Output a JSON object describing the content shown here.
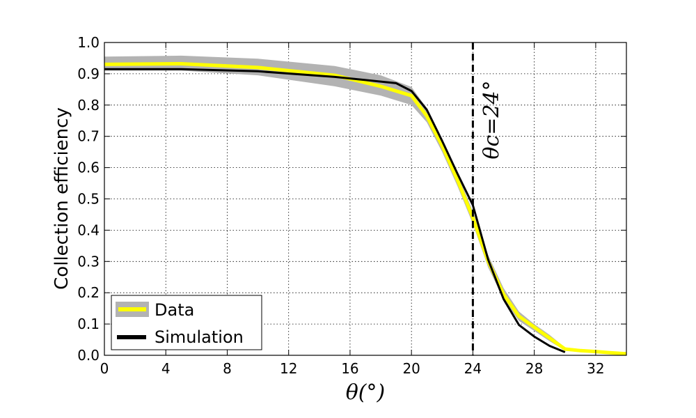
{
  "chart_data": {
    "type": "line",
    "xlabel": "θ(°)",
    "ylabel": "Collection efficiency",
    "xlim": [
      0,
      34
    ],
    "ylim": [
      0,
      1.0
    ],
    "xticks": [
      0,
      4,
      8,
      12,
      16,
      20,
      24,
      28,
      32
    ],
    "yticks": [
      0.0,
      0.1,
      0.2,
      0.3,
      0.4,
      0.5,
      0.6,
      0.7,
      0.8,
      0.9,
      1.0
    ],
    "grid": true,
    "legend_position": "bottom-left",
    "series": [
      {
        "name": "Data",
        "color": "#ffff00",
        "band_color": "#b3b3b3",
        "x": [
          0,
          5,
          10,
          15,
          18,
          20,
          21,
          22,
          23,
          24,
          25,
          26,
          27,
          28,
          29,
          30,
          31,
          32,
          33,
          34
        ],
        "y": [
          0.93,
          0.932,
          0.92,
          0.895,
          0.86,
          0.83,
          0.765,
          0.67,
          0.56,
          0.44,
          0.3,
          0.195,
          0.125,
          0.09,
          0.055,
          0.02,
          0.015,
          0.012,
          0.008,
          0.005
        ],
        "y_low": [
          0.91,
          0.91,
          0.895,
          0.86,
          0.83,
          0.8,
          0.745,
          0.65,
          0.54,
          0.42,
          0.28,
          0.18,
          0.11,
          0.078,
          0.045,
          0.015,
          0.01,
          0.008,
          0.005,
          0.003
        ],
        "y_high": [
          0.955,
          0.958,
          0.948,
          0.925,
          0.895,
          0.858,
          0.79,
          0.69,
          0.58,
          0.46,
          0.32,
          0.215,
          0.14,
          0.1,
          0.065,
          0.025,
          0.02,
          0.016,
          0.011,
          0.008
        ]
      },
      {
        "name": "Simulation",
        "color": "#000000",
        "x": [
          0,
          5,
          10,
          15,
          19,
          20,
          21,
          22,
          23,
          24,
          25,
          26,
          27,
          28,
          29,
          30
        ],
        "y": [
          0.915,
          0.915,
          0.908,
          0.89,
          0.87,
          0.845,
          0.785,
          0.685,
          0.58,
          0.48,
          0.305,
          0.18,
          0.097,
          0.06,
          0.03,
          0.01
        ]
      }
    ],
    "annotations": [
      {
        "type": "vline",
        "x": 24,
        "style": "dashed",
        "color": "#000000",
        "label": "θc=24°"
      }
    ]
  }
}
